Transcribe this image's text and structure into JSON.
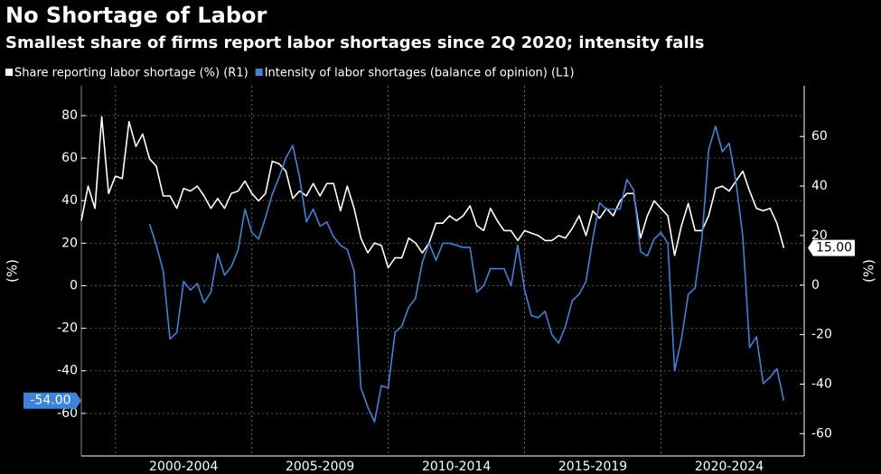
{
  "chart_data": {
    "type": "line",
    "title": "No Shortage of Labor",
    "subtitle": "Smallest share of firms report labor shortages since 2Q 2020; intensity falls",
    "y_label": "(%)",
    "y2_label": "(%)",
    "x": [
      1998.75,
      1999,
      1999.25,
      1999.5,
      1999.75,
      2000,
      2000.25,
      2000.5,
      2000.75,
      2001,
      2001.25,
      2001.5,
      2001.75,
      2002,
      2002.25,
      2002.5,
      2002.75,
      2003,
      2003.25,
      2003.5,
      2003.75,
      2004,
      2004.25,
      2004.5,
      2004.75,
      2005,
      2005.25,
      2005.5,
      2005.75,
      2006,
      2006.25,
      2006.5,
      2006.75,
      2007,
      2007.25,
      2007.5,
      2007.75,
      2008,
      2008.25,
      2008.5,
      2008.75,
      2009,
      2009.25,
      2009.5,
      2009.75,
      2010,
      2010.25,
      2010.5,
      2010.75,
      2011,
      2011.25,
      2011.5,
      2011.75,
      2012,
      2012.25,
      2012.5,
      2012.75,
      2013,
      2013.25,
      2013.5,
      2013.75,
      2014,
      2014.25,
      2014.5,
      2014.75,
      2015,
      2015.25,
      2015.5,
      2015.75,
      2016,
      2016.25,
      2016.5,
      2016.75,
      2017,
      2017.25,
      2017.5,
      2017.75,
      2018,
      2018.25,
      2018.5,
      2018.75,
      2019,
      2019.25,
      2019.5,
      2019.75,
      2020,
      2020.25,
      2020.5,
      2020.75,
      2021,
      2021.25,
      2021.5,
      2021.75,
      2022,
      2022.25,
      2022.5,
      2022.75,
      2023,
      2023.25,
      2023.5,
      2023.75,
      2024,
      2024.25,
      2024.5
    ],
    "series": [
      {
        "name": "Share reporting labor shortage (%) (R1)",
        "color": "#ffffff",
        "axis": "y2",
        "end_label": "15.00",
        "values": [
          26,
          40,
          31,
          68,
          37,
          44,
          43,
          66,
          56,
          61,
          51,
          48,
          36,
          36,
          31,
          39,
          38,
          40,
          36,
          31,
          35,
          31,
          37,
          38,
          42,
          37,
          34,
          37,
          50,
          49,
          46,
          35,
          38,
          36,
          41,
          36,
          41,
          41,
          30,
          40,
          31,
          19,
          13,
          17,
          16,
          7,
          11,
          11,
          19,
          17,
          13,
          17,
          25,
          25,
          28,
          26,
          28,
          32,
          24,
          22,
          31,
          26,
          22,
          22,
          18,
          22,
          21,
          20,
          18,
          18,
          20,
          19,
          23,
          28,
          20,
          30,
          27,
          31,
          28,
          34,
          37,
          37,
          19,
          28,
          34,
          31,
          28,
          12,
          24,
          33,
          22,
          22,
          28,
          39,
          40,
          38,
          42,
          46,
          38,
          31,
          30,
          31,
          25,
          15
        ]
      },
      {
        "name": "Intensity of labor shortages (balance of opinion) (L1)",
        "color": "#3a84dc",
        "end_label": "-54.00",
        "values": [
          null,
          null,
          null,
          null,
          null,
          null,
          null,
          null,
          null,
          null,
          29,
          19,
          7,
          -25,
          -22,
          2,
          -2,
          1,
          -8,
          -3,
          15,
          5,
          9,
          17,
          36,
          25,
          22,
          32,
          43,
          51,
          60,
          66,
          51,
          30,
          36,
          28,
          30,
          23,
          19,
          17,
          7,
          -48,
          -57,
          -64,
          -47,
          -48,
          -22,
          -19,
          -10,
          -6,
          11,
          20,
          12,
          20,
          20,
          19,
          18,
          18,
          -3,
          0,
          8,
          8,
          8,
          0,
          19,
          -2,
          -14,
          -15,
          -12,
          -23,
          -27,
          -19,
          -7,
          -4,
          2,
          22,
          39,
          36,
          36,
          36,
          50,
          45,
          16,
          14,
          22,
          25,
          20,
          -40,
          -25,
          -4,
          -1,
          22,
          64,
          75,
          63,
          67,
          49,
          23,
          -29,
          -24,
          -46,
          -43,
          -39,
          -54
        ]
      }
    ],
    "xlim": [
      1998.75,
      2025.25
    ],
    "xticks": [
      {
        "value": 2002.5,
        "label": "2000-2004"
      },
      {
        "value": 2007.5,
        "label": "2005-2009"
      },
      {
        "value": 2012.5,
        "label": "2010-2014"
      },
      {
        "value": 2017.5,
        "label": "2015-2019"
      },
      {
        "value": 2022.5,
        "label": "2020-2024"
      }
    ],
    "xgrid": [
      2000,
      2005,
      2010,
      2015,
      2020
    ],
    "ylim": [
      -80,
      94
    ],
    "yticks": [
      80,
      60,
      40,
      20,
      0,
      -20,
      -40,
      -60
    ],
    "y2lim": [
      -69,
      80.5
    ],
    "y2ticks": [
      60,
      40,
      20,
      0,
      -20,
      -40,
      -60
    ],
    "grid": true
  }
}
